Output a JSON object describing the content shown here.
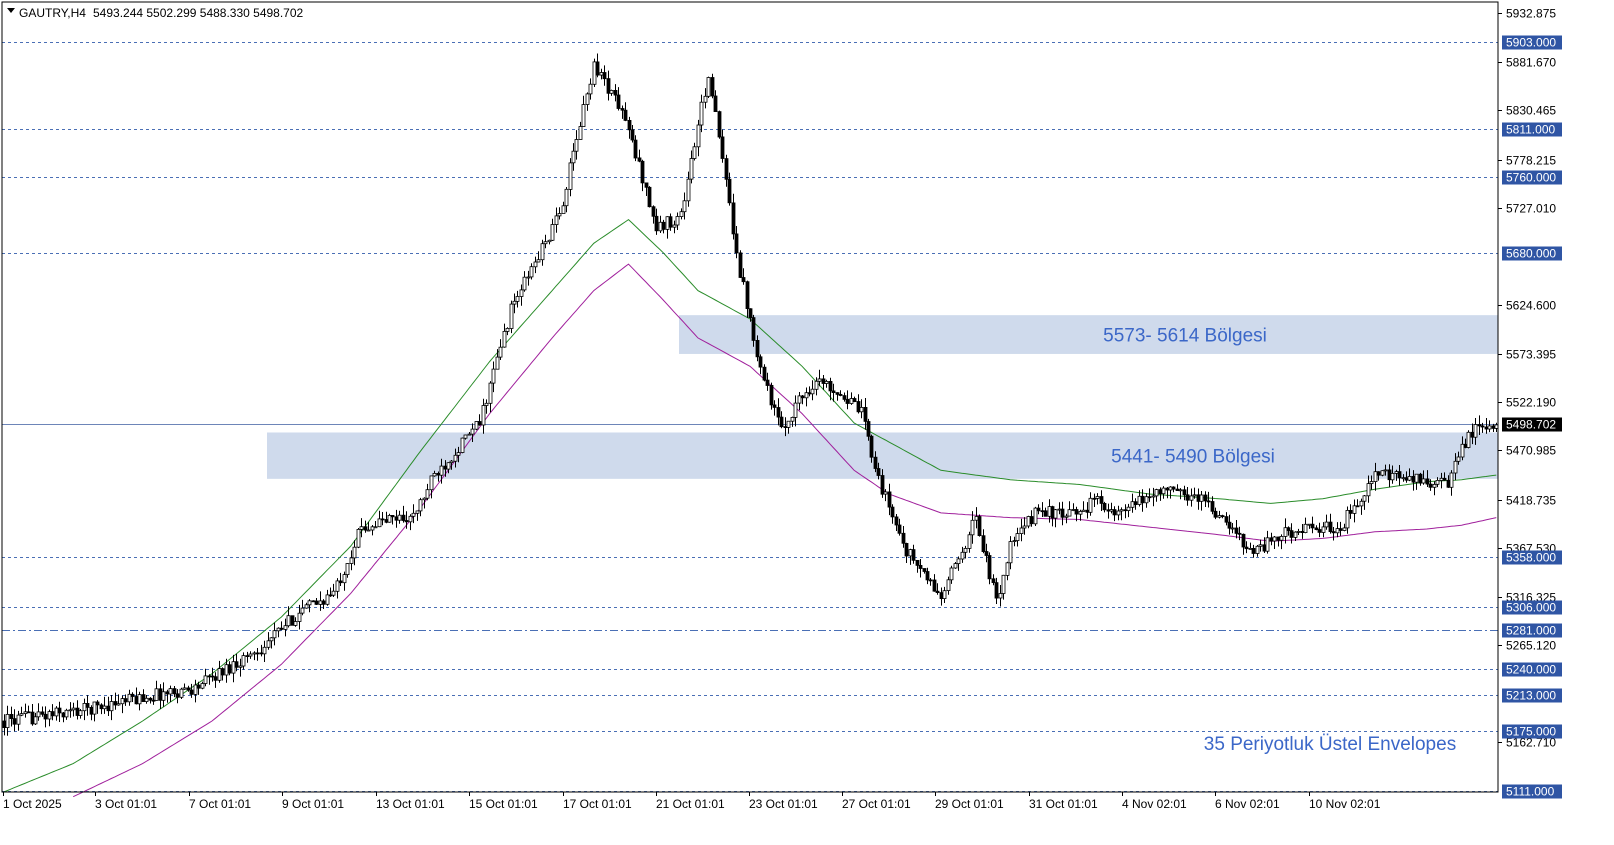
{
  "header": {
    "symbol": "GAUTRY,H4",
    "ohlc": "5493.244 5502.299 5488.330 5498.702"
  },
  "colors": {
    "background": "#ffffff",
    "level_line": "#4a6fb5",
    "tag_bg": "#2f55a4",
    "zone_fill": "#cfdaec",
    "zone_text": "#3b67c8",
    "envelope_upper": "#2a8c2a",
    "envelope_lower": "#a0209c",
    "candle_bull": "#ffffff",
    "candle_bear": "#000000",
    "last_price_bg": "#000000"
  },
  "chart_data": {
    "type": "candlestick",
    "title": "GAUTRY,H4",
    "y_range": [
      5110,
      5945
    ],
    "price_ticks": [
      "5932.875",
      "5881.670",
      "5830.465",
      "5778.215",
      "5727.010",
      "5624.600",
      "5573.395",
      "5522.190",
      "5470.985",
      "5418.735",
      "5367.530",
      "5316.325",
      "5265.120",
      "5162.710"
    ],
    "time_ticks": [
      "1 Oct 2025",
      "3 Oct 01:01",
      "7 Oct 01:01",
      "9 Oct 01:01",
      "13 Oct 01:01",
      "15 Oct 01:01",
      "17 Oct 01:01",
      "21 Oct 01:01",
      "23 Oct 01:01",
      "27 Oct 01:01",
      "29 Oct 01:01",
      "31 Oct 01:01",
      "4 Nov 02:01",
      "6 Nov 02:01",
      "10 Nov 02:01"
    ],
    "levels": [
      {
        "value": 5903,
        "label": "5903.000",
        "style": "dashed"
      },
      {
        "value": 5811,
        "label": "5811.000",
        "style": "dashed"
      },
      {
        "value": 5760,
        "label": "5760.000",
        "style": "dashed"
      },
      {
        "value": 5680,
        "label": "5680.000",
        "style": "dashed"
      },
      {
        "value": 5358,
        "label": "5358.000",
        "style": "dashed"
      },
      {
        "value": 5306,
        "label": "5306.000",
        "style": "dashed"
      },
      {
        "value": 5281,
        "label": "5281.000",
        "style": "dashdot"
      },
      {
        "value": 5240,
        "label": "5240.000",
        "style": "dashed"
      },
      {
        "value": 5213,
        "label": "5213.000",
        "style": "dashed"
      },
      {
        "value": 5175,
        "label": "5175.000",
        "style": "dashed"
      },
      {
        "value": 5111,
        "label": "5111.000",
        "style": "dashed"
      }
    ],
    "last_price": {
      "value": 5498.702,
      "label": "5498.702"
    },
    "zones": [
      {
        "from": 5573,
        "to": 5614,
        "label": "5573- 5614 Bölgesi"
      },
      {
        "from": 5441,
        "to": 5490,
        "label": "5441- 5490 Bölgesi"
      }
    ],
    "annotation": "35 Periyotluk Üstel Envelopes",
    "anchors": [
      [
        0,
        5185
      ],
      [
        20,
        5195
      ],
      [
        40,
        5210
      ],
      [
        55,
        5220
      ],
      [
        75,
        5265
      ],
      [
        85,
        5300
      ],
      [
        95,
        5320
      ],
      [
        103,
        5390
      ],
      [
        113,
        5400
      ],
      [
        118,
        5400
      ],
      [
        124,
        5445
      ],
      [
        137,
        5500
      ],
      [
        146,
        5620
      ],
      [
        160,
        5720
      ],
      [
        170,
        5880
      ],
      [
        178,
        5830
      ],
      [
        184,
        5760
      ],
      [
        188,
        5705
      ],
      [
        195,
        5720
      ],
      [
        203,
        5870
      ],
      [
        212,
        5660
      ],
      [
        218,
        5560
      ],
      [
        224,
        5490
      ],
      [
        228,
        5520
      ],
      [
        234,
        5545
      ],
      [
        240,
        5535
      ],
      [
        247,
        5510
      ],
      [
        253,
        5430
      ],
      [
        260,
        5365
      ],
      [
        270,
        5315
      ],
      [
        280,
        5400
      ],
      [
        286,
        5310
      ],
      [
        290,
        5370
      ],
      [
        298,
        5410
      ],
      [
        306,
        5400
      ],
      [
        316,
        5420
      ],
      [
        320,
        5400
      ],
      [
        333,
        5430
      ],
      [
        346,
        5420
      ],
      [
        350,
        5400
      ],
      [
        360,
        5365
      ],
      [
        370,
        5385
      ],
      [
        385,
        5390
      ],
      [
        395,
        5445
      ],
      [
        406,
        5440
      ],
      [
        416,
        5435
      ],
      [
        422,
        5490
      ],
      [
        430,
        5498
      ]
    ],
    "envelopes": {
      "upper": [
        [
          0,
          5110
        ],
        [
          20,
          5140
        ],
        [
          40,
          5185
        ],
        [
          60,
          5235
        ],
        [
          80,
          5295
        ],
        [
          100,
          5370
        ],
        [
          120,
          5470
        ],
        [
          140,
          5565
        ],
        [
          158,
          5640
        ],
        [
          170,
          5690
        ],
        [
          180,
          5715
        ],
        [
          190,
          5680
        ],
        [
          200,
          5640
        ],
        [
          215,
          5610
        ],
        [
          230,
          5560
        ],
        [
          245,
          5500
        ],
        [
          255,
          5480
        ],
        [
          270,
          5450
        ],
        [
          290,
          5440
        ],
        [
          310,
          5435
        ],
        [
          330,
          5425
        ],
        [
          350,
          5420
        ],
        [
          365,
          5415
        ],
        [
          380,
          5420
        ],
        [
          395,
          5430
        ],
        [
          410,
          5438
        ],
        [
          420,
          5440
        ],
        [
          430,
          5445
        ]
      ],
      "lower": [
        [
          20,
          5105
        ],
        [
          40,
          5140
        ],
        [
          60,
          5185
        ],
        [
          80,
          5245
        ],
        [
          100,
          5320
        ],
        [
          120,
          5410
        ],
        [
          140,
          5510
        ],
        [
          158,
          5590
        ],
        [
          170,
          5640
        ],
        [
          180,
          5668
        ],
        [
          190,
          5630
        ],
        [
          200,
          5590
        ],
        [
          215,
          5560
        ],
        [
          230,
          5510
        ],
        [
          245,
          5450
        ],
        [
          255,
          5425
        ],
        [
          270,
          5405
        ],
        [
          290,
          5400
        ],
        [
          310,
          5398
        ],
        [
          330,
          5390
        ],
        [
          350,
          5382
        ],
        [
          365,
          5375
        ],
        [
          380,
          5378
        ],
        [
          395,
          5385
        ],
        [
          410,
          5388
        ],
        [
          420,
          5392
        ],
        [
          430,
          5400
        ]
      ]
    }
  }
}
